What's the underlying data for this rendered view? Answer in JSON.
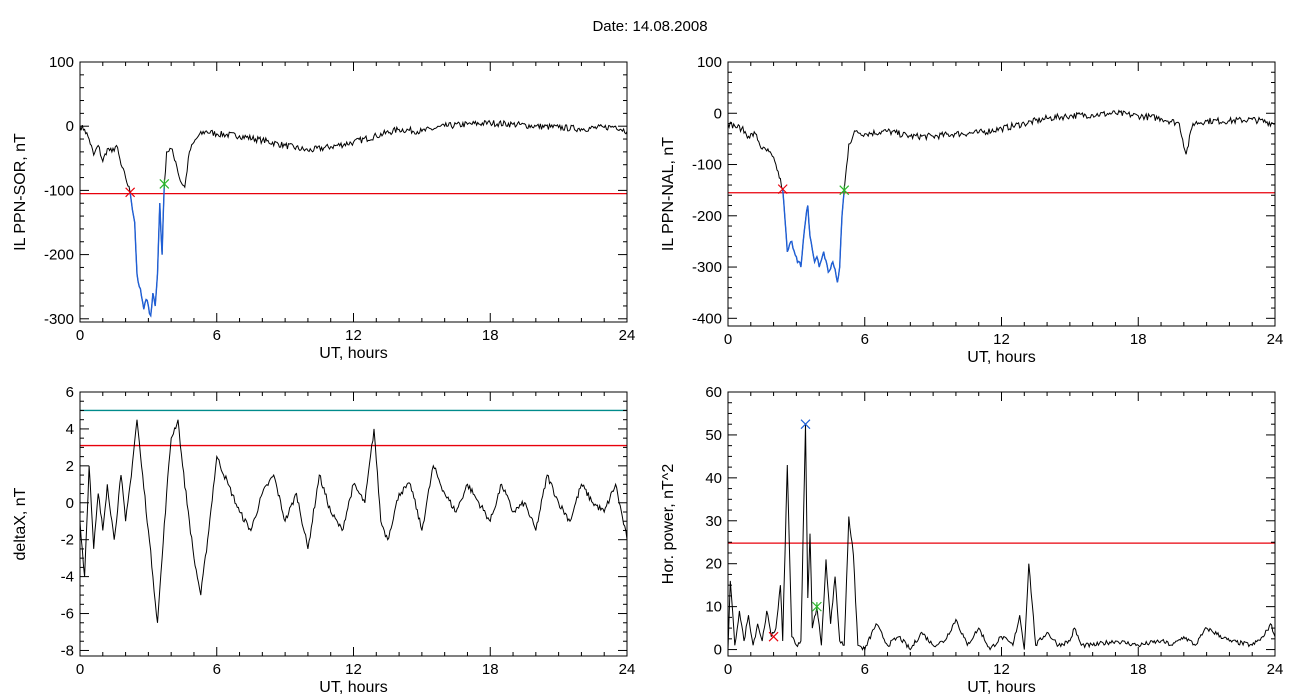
{
  "header": {
    "title": "Date:  14.08.2008"
  },
  "colors": {
    "frame": "#000000",
    "trace": "#000000",
    "highlight": "#1f5fd6",
    "threshold_red": "#e8000b",
    "threshold_teal": "#008b8b",
    "marker_red": "#e8000b",
    "marker_green": "#2bb52b",
    "marker_blue": "#1f5fd6"
  },
  "chart_data": [
    {
      "id": "ppn-sor",
      "type": "line",
      "title": "",
      "xlabel": "UT, hours",
      "ylabel": "IL PPN-SOR, nT",
      "xlim": [
        0,
        24
      ],
      "ylim": [
        -305,
        100
      ],
      "xticks": [
        0,
        6,
        12,
        18,
        24
      ],
      "yticks": [
        -300,
        -200,
        -100,
        0,
        100
      ],
      "grid": false,
      "threshold": [
        {
          "y": -105,
          "color": "red"
        }
      ],
      "highlight_range": [
        2.2,
        3.7
      ],
      "markers": [
        {
          "x": 2.2,
          "y": -103,
          "color": "red"
        },
        {
          "x": 3.7,
          "y": -90,
          "color": "green"
        }
      ],
      "series": [
        {
          "x": [
            0,
            0.2,
            0.4,
            0.6,
            0.8,
            1.0,
            1.2,
            1.4,
            1.6,
            1.8,
            2.0,
            2.2,
            2.4,
            2.5,
            2.6,
            2.7,
            2.8,
            2.9,
            3.0,
            3.1,
            3.2,
            3.3,
            3.4,
            3.5,
            3.6,
            3.7,
            3.8,
            4.0,
            4.2,
            4.4,
            4.6,
            4.8,
            5.0,
            5.2,
            5.5,
            6,
            7,
            8,
            9,
            10,
            11,
            12,
            13,
            14,
            15,
            16,
            17,
            18,
            19,
            20,
            21,
            22,
            23,
            23.5,
            24
          ],
          "y": [
            0,
            -5,
            -20,
            -45,
            -30,
            -55,
            -35,
            -40,
            -30,
            -60,
            -80,
            -103,
            -150,
            -230,
            -250,
            -265,
            -285,
            -270,
            -280,
            -295,
            -260,
            -280,
            -230,
            -120,
            -200,
            -90,
            -40,
            -35,
            -55,
            -85,
            -95,
            -40,
            -25,
            -15,
            -8,
            -12,
            -15,
            -22,
            -30,
            -38,
            -32,
            -25,
            -15,
            -5,
            -8,
            0,
            3,
            5,
            3,
            0,
            -2,
            -4,
            -2,
            0,
            -8
          ]
        }
      ]
    },
    {
      "id": "ppn-nal",
      "type": "line",
      "title": "",
      "xlabel": "UT, hours",
      "ylabel": "IL PPN-NAL, nT",
      "xlim": [
        0,
        24
      ],
      "ylim": [
        -415,
        100
      ],
      "xticks": [
        0,
        6,
        12,
        18,
        24
      ],
      "yticks": [
        -400,
        -300,
        -200,
        -100,
        0,
        100
      ],
      "grid": false,
      "threshold": [
        {
          "y": -155,
          "color": "red"
        }
      ],
      "highlight_range": [
        2.4,
        5.1
      ],
      "markers": [
        {
          "x": 2.4,
          "y": -148,
          "color": "red"
        },
        {
          "x": 5.1,
          "y": -150,
          "color": "green"
        }
      ],
      "series": [
        {
          "x": [
            0,
            0.3,
            0.6,
            0.9,
            1.2,
            1.5,
            1.8,
            2.1,
            2.4,
            2.6,
            2.8,
            3.0,
            3.2,
            3.4,
            3.5,
            3.6,
            3.8,
            3.9,
            4.0,
            4.2,
            4.4,
            4.6,
            4.8,
            4.9,
            5.0,
            5.1,
            5.3,
            5.6,
            6,
            7,
            8,
            9,
            10,
            11,
            12,
            13,
            14,
            15,
            16,
            17,
            18,
            19,
            19.8,
            20.1,
            20.4,
            21,
            22,
            23,
            24
          ],
          "y": [
            -20,
            -25,
            -30,
            -45,
            -40,
            -70,
            -75,
            -100,
            -148,
            -270,
            -250,
            -280,
            -300,
            -210,
            -180,
            -240,
            -290,
            -280,
            -300,
            -270,
            -310,
            -290,
            -330,
            -300,
            -200,
            -150,
            -60,
            -35,
            -40,
            -35,
            -45,
            -45,
            -40,
            -38,
            -30,
            -20,
            -10,
            -5,
            -3,
            0,
            -5,
            -10,
            -20,
            -80,
            -20,
            -15,
            -15,
            -12,
            -20
          ]
        }
      ]
    },
    {
      "id": "deltax",
      "type": "line",
      "title": "",
      "xlabel": "UT, hours",
      "ylabel": "deltaX, nT",
      "xlim": [
        0,
        24
      ],
      "ylim": [
        -8.3,
        6
      ],
      "xticks": [
        0,
        6,
        12,
        18,
        24
      ],
      "yticks": [
        -8,
        -6,
        -4,
        -2,
        0,
        2,
        4,
        6
      ],
      "grid": false,
      "threshold": [
        {
          "y": 5.0,
          "color": "teal"
        },
        {
          "y": 3.1,
          "color": "red"
        }
      ],
      "series": [
        {
          "x": [
            0,
            0.2,
            0.4,
            0.6,
            0.8,
            1.0,
            1.2,
            1.5,
            1.8,
            2.0,
            2.2,
            2.5,
            2.7,
            3.0,
            3.2,
            3.4,
            3.6,
            3.8,
            4.0,
            4.3,
            4.5,
            4.8,
            5.0,
            5.3,
            5.6,
            6.0,
            6.5,
            7.0,
            7.5,
            8.0,
            8.5,
            9.0,
            9.5,
            10.0,
            10.5,
            11.0,
            11.5,
            12.0,
            12.5,
            12.9,
            13.2,
            13.5,
            14.0,
            14.5,
            15.0,
            15.5,
            16.0,
            16.5,
            17.0,
            17.5,
            18.0,
            18.5,
            19.0,
            19.5,
            20.0,
            20.5,
            21.0,
            21.5,
            22.0,
            22.5,
            23.0,
            23.5,
            24.0
          ],
          "y": [
            -1,
            -4,
            2,
            -2.5,
            0.5,
            -1.5,
            1.0,
            -2.0,
            1.5,
            -1.0,
            1.0,
            4.5,
            2.0,
            -1.5,
            -4.0,
            -6.5,
            -3.0,
            0.5,
            3.5,
            4.5,
            2.0,
            -1.0,
            -3.0,
            -5.0,
            -2.0,
            2.5,
            1.0,
            -0.5,
            -1.5,
            0.5,
            1.5,
            -1.0,
            0.5,
            -2.5,
            1.5,
            -0.5,
            -1.5,
            1.0,
            0.0,
            4.0,
            -1.0,
            -2.0,
            0.5,
            1.0,
            -1.5,
            2.0,
            0.5,
            -0.5,
            1.0,
            0.0,
            -1.0,
            1.0,
            -0.5,
            0.0,
            -1.5,
            1.5,
            0.0,
            -1.0,
            1.0,
            0.0,
            -0.5,
            1.0,
            -2.0
          ]
        }
      ]
    },
    {
      "id": "hor-power",
      "type": "line",
      "title": "",
      "xlabel": "UT, hours",
      "ylabel": "Hor. power, nT^2",
      "xlim": [
        0,
        24
      ],
      "ylim": [
        -1.5,
        60
      ],
      "xticks": [
        0,
        6,
        12,
        18,
        24
      ],
      "yticks": [
        0,
        10,
        20,
        30,
        40,
        50,
        60
      ],
      "grid": false,
      "threshold": [
        {
          "y": 24.8,
          "color": "red"
        }
      ],
      "markers": [
        {
          "x": 2.0,
          "y": 3.0,
          "color": "red"
        },
        {
          "x": 3.4,
          "y": 52.5,
          "color": "blue"
        },
        {
          "x": 3.9,
          "y": 10.0,
          "color": "green"
        }
      ],
      "series": [
        {
          "x": [
            0,
            0.1,
            0.3,
            0.5,
            0.7,
            0.9,
            1.1,
            1.3,
            1.5,
            1.7,
            1.9,
            2.1,
            2.3,
            2.4,
            2.6,
            2.8,
            3.0,
            3.2,
            3.4,
            3.5,
            3.6,
            3.7,
            3.9,
            4.1,
            4.3,
            4.5,
            4.7,
            4.9,
            5.1,
            5.3,
            5.5,
            5.7,
            6.0,
            6.5,
            7.0,
            7.5,
            8.0,
            8.5,
            9.0,
            9.5,
            10.0,
            10.5,
            11.0,
            11.5,
            12.0,
            12.5,
            12.8,
            13.0,
            13.2,
            13.5,
            14.0,
            14.5,
            15.0,
            15.2,
            15.5,
            16.0,
            17.0,
            18.0,
            19.0,
            19.5,
            20.0,
            20.5,
            21.0,
            22.0,
            23.0,
            23.5,
            23.8,
            24.0
          ],
          "y": [
            0,
            16,
            1,
            9,
            2,
            8,
            1,
            6,
            2,
            9,
            3,
            5,
            15,
            2,
            43,
            3,
            1,
            2,
            52.5,
            12,
            27,
            5,
            10,
            1,
            21,
            6,
            17,
            2,
            1,
            31,
            22,
            1,
            0,
            6,
            1,
            3,
            0,
            4,
            1,
            2,
            7,
            1,
            5,
            0,
            3,
            1,
            8,
            0,
            20,
            1,
            4,
            1,
            2,
            5,
            1,
            1,
            2,
            1,
            2,
            1,
            3,
            1,
            5,
            2,
            1,
            3,
            6,
            3
          ]
        }
      ]
    }
  ]
}
